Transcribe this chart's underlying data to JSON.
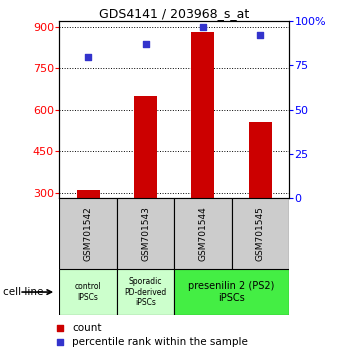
{
  "title": "GDS4141 / 203968_s_at",
  "samples": [
    "GSM701542",
    "GSM701543",
    "GSM701544",
    "GSM701545"
  ],
  "counts": [
    310,
    650,
    880,
    555
  ],
  "percentiles": [
    80,
    87,
    97,
    92
  ],
  "ylim_left": [
    280,
    920
  ],
  "ylim_right": [
    0,
    100
  ],
  "yticks_left": [
    300,
    450,
    600,
    750,
    900
  ],
  "yticks_right": [
    0,
    25,
    50,
    75,
    100
  ],
  "bar_color": "#cc0000",
  "dot_color": "#3333cc",
  "bar_width": 0.4,
  "sample_box_color": "#cccccc",
  "group1_color": "#ccffcc",
  "group2_color": "#44ee44",
  "cell_line_label": "cell line",
  "legend_count_label": "count",
  "legend_pct_label": "percentile rank within the sample",
  "title_fontsize": 9,
  "axis_fontsize": 8,
  "sample_fontsize": 6.5,
  "group_fontsize": 7
}
